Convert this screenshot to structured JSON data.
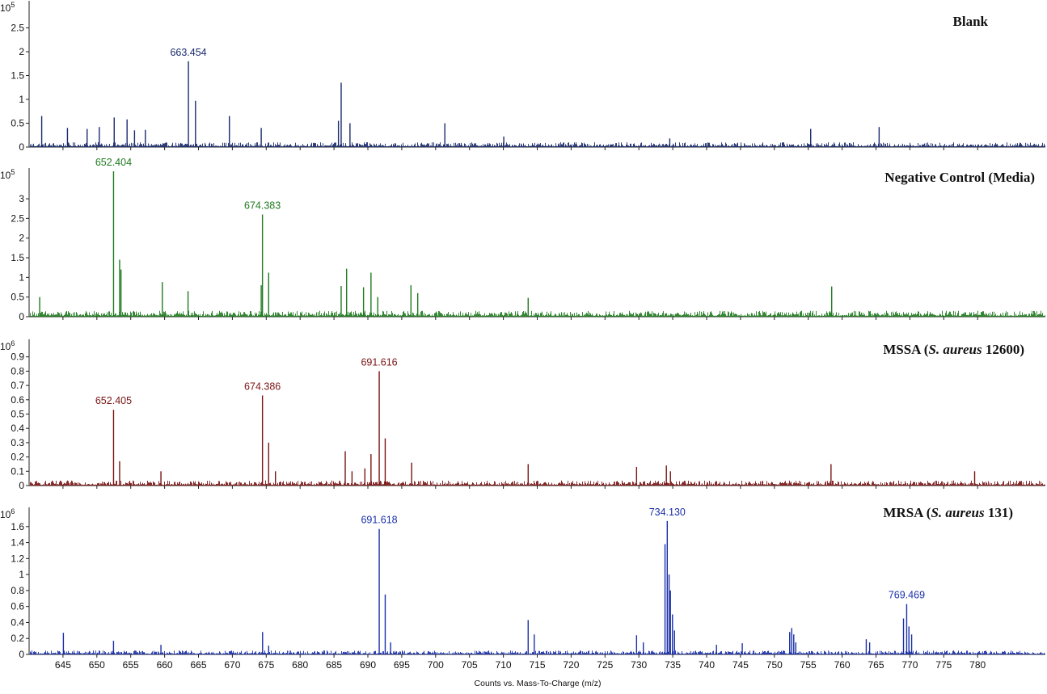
{
  "figure": {
    "xlabel": "Counts vs. Mass-To-Charge (m/z)"
  },
  "chart_data": [
    {
      "type": "bar",
      "title": "Blank",
      "color": "#1a2a6c",
      "exponent": "x10",
      "exponent_power": "5",
      "yticks": [
        "0",
        "0.5",
        "1",
        "1.5",
        "2",
        "2.5"
      ],
      "ylim": [
        0,
        3.0
      ],
      "xlim": [
        640,
        790
      ],
      "noise_max": 0.1,
      "peaks": [
        {
          "x": 641.8,
          "y": 0.65
        },
        {
          "x": 645.6,
          "y": 0.4
        },
        {
          "x": 648.5,
          "y": 0.38
        },
        {
          "x": 650.3,
          "y": 0.42
        },
        {
          "x": 652.5,
          "y": 0.62
        },
        {
          "x": 654.4,
          "y": 0.58
        },
        {
          "x": 655.5,
          "y": 0.35
        },
        {
          "x": 657.1,
          "y": 0.36
        },
        {
          "x": 663.454,
          "y": 1.8,
          "label": "663.454"
        },
        {
          "x": 664.5,
          "y": 0.97
        },
        {
          "x": 669.5,
          "y": 0.65
        },
        {
          "x": 674.2,
          "y": 0.4
        },
        {
          "x": 685.6,
          "y": 0.55
        },
        {
          "x": 686.0,
          "y": 1.35
        },
        {
          "x": 687.3,
          "y": 0.5
        },
        {
          "x": 701.3,
          "y": 0.5
        },
        {
          "x": 710.0,
          "y": 0.22
        },
        {
          "x": 734.5,
          "y": 0.18
        },
        {
          "x": 755.3,
          "y": 0.38
        },
        {
          "x": 765.4,
          "y": 0.42
        }
      ]
    },
    {
      "type": "bar",
      "title": "Negative Control (Media)",
      "color": "#1f7a1f",
      "exponent": "x10",
      "exponent_power": "5",
      "yticks": [
        "0",
        "0.5",
        "1",
        "1.5",
        "2",
        "2.5",
        "3"
      ],
      "ylim": [
        0,
        3.7
      ],
      "xlim": [
        640,
        790
      ],
      "noise_max": 0.15,
      "peaks": [
        {
          "x": 641.5,
          "y": 0.5
        },
        {
          "x": 652.404,
          "y": 3.7,
          "label": "652.404"
        },
        {
          "x": 653.3,
          "y": 1.45
        },
        {
          "x": 653.5,
          "y": 1.2
        },
        {
          "x": 659.6,
          "y": 0.88
        },
        {
          "x": 663.4,
          "y": 0.65
        },
        {
          "x": 674.383,
          "y": 2.6,
          "label": "674.383"
        },
        {
          "x": 674.2,
          "y": 0.8
        },
        {
          "x": 675.3,
          "y": 1.12
        },
        {
          "x": 686.0,
          "y": 0.78
        },
        {
          "x": 686.8,
          "y": 1.22
        },
        {
          "x": 689.3,
          "y": 0.75
        },
        {
          "x": 690.4,
          "y": 1.12
        },
        {
          "x": 691.4,
          "y": 0.5
        },
        {
          "x": 696.3,
          "y": 0.8
        },
        {
          "x": 697.3,
          "y": 0.6
        },
        {
          "x": 713.6,
          "y": 0.48
        },
        {
          "x": 758.4,
          "y": 0.77
        }
      ]
    },
    {
      "type": "bar",
      "title": "MSSA (S. aureus 12600)",
      "title_parts": {
        "a": "MSSA (",
        "b": "S. aureus",
        "c": " 12600)"
      },
      "color": "#7a1414",
      "exponent": "x10",
      "exponent_power": "6",
      "yticks": [
        "0",
        "0.1",
        "0.2",
        "0.3",
        "0.4",
        "0.5",
        "0.6",
        "0.7",
        "0.8",
        "0.9"
      ],
      "ylim": [
        0,
        1.0
      ],
      "xlim": [
        640,
        790
      ],
      "noise_max": 0.035,
      "peaks": [
        {
          "x": 652.405,
          "y": 0.53,
          "label": "652.405"
        },
        {
          "x": 653.3,
          "y": 0.17
        },
        {
          "x": 659.4,
          "y": 0.1
        },
        {
          "x": 674.386,
          "y": 0.63,
          "label": "674.386"
        },
        {
          "x": 675.3,
          "y": 0.3
        },
        {
          "x": 676.3,
          "y": 0.1
        },
        {
          "x": 686.6,
          "y": 0.24
        },
        {
          "x": 687.6,
          "y": 0.1
        },
        {
          "x": 689.5,
          "y": 0.12
        },
        {
          "x": 690.4,
          "y": 0.22
        },
        {
          "x": 691.616,
          "y": 0.8,
          "label": "691.616"
        },
        {
          "x": 692.5,
          "y": 0.33
        },
        {
          "x": 696.4,
          "y": 0.16
        },
        {
          "x": 713.6,
          "y": 0.15
        },
        {
          "x": 729.6,
          "y": 0.13
        },
        {
          "x": 734.0,
          "y": 0.14
        },
        {
          "x": 734.6,
          "y": 0.1
        },
        {
          "x": 758.3,
          "y": 0.15
        },
        {
          "x": 779.5,
          "y": 0.1
        }
      ]
    },
    {
      "type": "bar",
      "title": "MRSA (S. aureus 131)",
      "title_parts": {
        "a": "MRSA (",
        "b": "S. aureus",
        "c": " 131)"
      },
      "color": "#1a2fa8",
      "exponent": "x10",
      "exponent_power": "6",
      "yticks": [
        "0",
        "0.2",
        "0.4",
        "0.6",
        "0.8",
        "1",
        "1.2",
        "1.4",
        "1.6"
      ],
      "ylim": [
        0,
        1.8
      ],
      "xlim": [
        640,
        790
      ],
      "noise_max": 0.05,
      "peaks": [
        {
          "x": 645.0,
          "y": 0.27
        },
        {
          "x": 652.4,
          "y": 0.17
        },
        {
          "x": 659.4,
          "y": 0.12
        },
        {
          "x": 674.4,
          "y": 0.28
        },
        {
          "x": 675.3,
          "y": 0.11
        },
        {
          "x": 691.618,
          "y": 1.57,
          "label": "691.618"
        },
        {
          "x": 692.5,
          "y": 0.75
        },
        {
          "x": 693.3,
          "y": 0.15
        },
        {
          "x": 713.6,
          "y": 0.43
        },
        {
          "x": 714.5,
          "y": 0.25
        },
        {
          "x": 729.6,
          "y": 0.24
        },
        {
          "x": 730.6,
          "y": 0.15
        },
        {
          "x": 733.8,
          "y": 1.38
        },
        {
          "x": 734.13,
          "y": 1.67,
          "label": "734.130"
        },
        {
          "x": 734.4,
          "y": 1.0
        },
        {
          "x": 734.6,
          "y": 0.8
        },
        {
          "x": 734.9,
          "y": 0.5
        },
        {
          "x": 735.2,
          "y": 0.3
        },
        {
          "x": 741.4,
          "y": 0.12
        },
        {
          "x": 745.2,
          "y": 0.14
        },
        {
          "x": 752.2,
          "y": 0.28
        },
        {
          "x": 752.5,
          "y": 0.33
        },
        {
          "x": 752.8,
          "y": 0.25
        },
        {
          "x": 753.1,
          "y": 0.15
        },
        {
          "x": 763.5,
          "y": 0.19
        },
        {
          "x": 764.0,
          "y": 0.15
        },
        {
          "x": 769.0,
          "y": 0.45
        },
        {
          "x": 769.469,
          "y": 0.63,
          "label": "769.469"
        },
        {
          "x": 769.8,
          "y": 0.35
        },
        {
          "x": 770.2,
          "y": 0.25
        }
      ]
    }
  ],
  "xaxis": {
    "ticks": [
      645,
      650,
      655,
      660,
      665,
      670,
      675,
      680,
      685,
      690,
      695,
      700,
      705,
      710,
      715,
      720,
      725,
      730,
      735,
      740,
      745,
      750,
      755,
      760,
      765,
      770,
      775,
      780
    ]
  }
}
